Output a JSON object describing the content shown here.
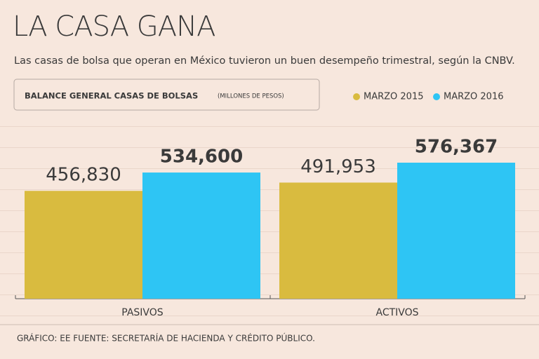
{
  "chart_data": {
    "type": "bar",
    "title": "LA CASA GANA",
    "subtitle": "Las casas de bolsa que operan en México tuvieron un buen desempeño trimestral, según la CNBV.",
    "chart_title": "BALANCE GENERAL CASAS DE BOLSAS",
    "unit_label": "(MILLONES DE PESOS)",
    "categories": [
      "PASIVOS",
      "ACTIVOS"
    ],
    "series": [
      {
        "name": "MARZO 2015",
        "color": "#d9bb3f",
        "values": [
          456830,
          491953
        ],
        "value_labels": [
          "456,830",
          "491,953"
        ]
      },
      {
        "name": "MARZO 2016",
        "color": "#2ec5f4",
        "values": [
          534600,
          576367
        ],
        "value_labels": [
          "534,600",
          "576,367"
        ]
      }
    ],
    "footer": "GRÁFICO: EE  FUENTE: SECRETARÍA DE HACIENDA Y CRÉDITO PÚBLICO."
  }
}
